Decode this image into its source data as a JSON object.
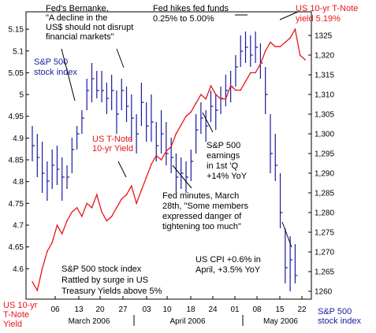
{
  "chart_data": {
    "type": "line",
    "left_axis": {
      "label_lines": [
        "US 10-yr",
        "T-Note",
        "Yield"
      ],
      "ticks": [
        "4.6",
        "4.65",
        "4.7",
        "4.75",
        "4.8",
        "4.85",
        "4.9",
        "4.95",
        "5",
        "5.05",
        "5.1",
        "5.15"
      ],
      "range": [
        4.53,
        5.19
      ]
    },
    "right_axis": {
      "label_lines": [
        "S&P 500",
        "stock index"
      ],
      "ticks": [
        "1260",
        "1,265",
        "1,270",
        "1,275",
        "1,280",
        "1,285",
        "1,290",
        "1,295",
        "1,300",
        "1,305",
        "1,310",
        "1,315",
        "1,320",
        "1325"
      ],
      "range": [
        1258,
        1331
      ]
    },
    "x_ticks": [
      "06",
      "13",
      "20",
      "27",
      "03",
      "10",
      "18",
      "24",
      "01",
      "08",
      "15",
      "22"
    ],
    "x_groups": [
      "March 2006",
      "April 2006",
      "May 2006"
    ],
    "series": [
      {
        "name": "US 10-yr T-Note yield",
        "color": "#e8141a",
        "x": [
          1,
          2,
          3,
          4,
          5,
          6,
          7,
          8,
          9,
          10,
          11,
          12,
          13,
          14,
          15,
          16,
          17,
          18,
          19,
          20,
          21,
          22,
          23,
          24,
          25,
          26,
          27,
          28,
          29,
          30,
          31,
          32,
          33,
          34,
          35,
          36,
          37,
          38,
          39,
          40,
          41,
          42,
          43,
          44,
          45,
          46,
          47,
          48,
          49,
          50,
          51,
          52,
          53,
          54,
          55,
          56
        ],
        "values": [
          4.57,
          4.55,
          4.6,
          4.64,
          4.66,
          4.7,
          4.68,
          4.71,
          4.73,
          4.74,
          4.72,
          4.75,
          4.74,
          4.77,
          4.73,
          4.71,
          4.72,
          4.74,
          4.76,
          4.77,
          4.79,
          4.75,
          4.78,
          4.81,
          4.84,
          4.86,
          4.85,
          4.87,
          4.88,
          4.91,
          4.93,
          4.95,
          4.96,
          4.98,
          5.0,
          4.99,
          5.02,
          5.0,
          4.99,
          4.99,
          5.02,
          5.01,
          5.01,
          5.03,
          5.05,
          5.05,
          5.07,
          5.1,
          5.12,
          5.11,
          5.11,
          5.12,
          5.13,
          5.15,
          5.09,
          5.08
        ]
      },
      {
        "name": "S&P 500 stock index",
        "color": "#1a1aa0",
        "x": [
          1,
          2,
          3,
          4,
          5,
          6,
          7,
          8,
          9,
          10,
          11,
          12,
          13,
          14,
          15,
          16,
          17,
          18,
          19,
          20,
          21,
          22,
          23,
          24,
          25,
          26,
          27,
          28,
          29,
          30,
          31,
          32,
          33,
          34,
          35,
          36,
          37,
          38,
          39,
          40,
          41,
          42,
          43,
          44,
          45,
          46,
          47,
          48,
          49,
          50,
          51,
          52,
          53,
          54
        ],
        "high": [
          1302,
          1300,
          1298,
          1293,
          1296,
          1297,
          1294,
          1292,
          1299,
          1302,
          1306,
          1314,
          1318,
          1316,
          1316,
          1313,
          1315,
          1311,
          1314,
          1312,
          1310,
          1305,
          1313,
          1308,
          1310,
          1303,
          1306,
          1303,
          1299,
          1295,
          1294,
          1293,
          1296,
          1305,
          1308,
          1306,
          1311,
          1310,
          1312,
          1315,
          1316,
          1320,
          1325,
          1326,
          1325,
          1326,
          1323,
          1317,
          1305,
          1300,
          1290,
          1276,
          1274,
          1272
        ],
        "low": [
          1293,
          1289,
          1285,
          1283,
          1286,
          1287,
          1283,
          1286,
          1290,
          1296,
          1300,
          1306,
          1308,
          1309,
          1308,
          1305,
          1306,
          1300,
          1306,
          1303,
          1298,
          1295,
          1302,
          1298,
          1298,
          1293,
          1295,
          1292,
          1290,
          1285,
          1286,
          1285,
          1288,
          1295,
          1300,
          1298,
          1303,
          1301,
          1305,
          1307,
          1308,
          1312,
          1317,
          1318,
          1317,
          1318,
          1314,
          1305,
          1290,
          1288,
          1276,
          1262,
          1260,
          1262
        ],
        "close": [
          1297,
          1294,
          1290,
          1288,
          1292,
          1291,
          1289,
          1289,
          1296,
          1300,
          1304,
          1311,
          1314,
          1311,
          1311,
          1309,
          1311,
          1305,
          1311,
          1307,
          1304,
          1300,
          1308,
          1302,
          1303,
          1297,
          1300,
          1295,
          1294,
          1289,
          1290,
          1289,
          1293,
          1301,
          1304,
          1302,
          1307,
          1306,
          1309,
          1311,
          1312,
          1317,
          1321,
          1322,
          1320,
          1322,
          1318,
          1310,
          1295,
          1292,
          1280,
          1266,
          1268,
          1264
        ]
      }
    ],
    "annotations": {
      "bernanke": [
        "Fed's Bernanke,",
        "\"A decline in the",
        "US$ should not disrupt",
        "financial markets\""
      ],
      "fed_hikes": [
        "Fed hikes fed funds",
        "0.25% to 5.00%"
      ],
      "yield_top": [
        "US 10-yr T-Note",
        "yield 5.19%"
      ],
      "sp_label": [
        "S&P 500",
        "stock index"
      ],
      "yield_label": [
        "US T-Note",
        "10-yr Yield"
      ],
      "earnings": [
        "S&P 500",
        "earnings",
        "in 1st 'Q",
        "+14% YoY"
      ],
      "minutes": [
        "Fed minutes, March",
        "28th, \"Some members",
        "expressed danger of",
        "tightening too much\""
      ],
      "cpi": [
        "US CPI +0.6% in",
        "April, +3.5% YoY"
      ],
      "caption": [
        "S&P 500 stock index",
        "Rattled by surge in US",
        "Treasury Yields above 5%"
      ]
    }
  }
}
